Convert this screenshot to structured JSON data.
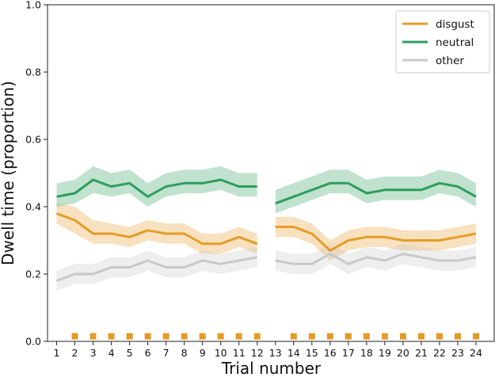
{
  "chart_data": {
    "type": "line",
    "xlabel": "Trial number",
    "ylabel": "Dwell time (proportion)",
    "ylim": [
      0.0,
      1.0
    ],
    "yticks": [
      "0.0",
      "0.2",
      "0.4",
      "0.6",
      "0.8",
      "1.0"
    ],
    "x": [
      1,
      2,
      3,
      4,
      5,
      6,
      7,
      8,
      9,
      10,
      11,
      12,
      13,
      14,
      15,
      16,
      17,
      18,
      19,
      20,
      21,
      22,
      23,
      24
    ],
    "segments": [
      [
        1,
        12
      ],
      [
        13,
        24
      ]
    ],
    "grid": false,
    "legend_position": "top-right",
    "series": [
      {
        "name": "disgust",
        "color": "#E69B27",
        "values": [
          0.38,
          0.36,
          0.32,
          0.32,
          0.31,
          0.33,
          0.32,
          0.32,
          0.29,
          0.29,
          0.31,
          0.29,
          0.34,
          0.34,
          0.32,
          0.27,
          0.3,
          0.31,
          0.31,
          0.3,
          0.3,
          0.3,
          0.31,
          0.32
        ],
        "lower": [
          0.35,
          0.32,
          0.29,
          0.29,
          0.28,
          0.3,
          0.29,
          0.29,
          0.26,
          0.26,
          0.28,
          0.26,
          0.31,
          0.31,
          0.29,
          0.24,
          0.27,
          0.28,
          0.28,
          0.27,
          0.27,
          0.27,
          0.28,
          0.29
        ],
        "upper": [
          0.41,
          0.4,
          0.36,
          0.35,
          0.34,
          0.36,
          0.35,
          0.35,
          0.32,
          0.32,
          0.34,
          0.32,
          0.37,
          0.37,
          0.35,
          0.3,
          0.33,
          0.34,
          0.34,
          0.33,
          0.33,
          0.33,
          0.34,
          0.35
        ]
      },
      {
        "name": "neutral",
        "color": "#2E9E5E",
        "values": [
          0.43,
          0.44,
          0.48,
          0.46,
          0.47,
          0.43,
          0.46,
          0.47,
          0.47,
          0.48,
          0.46,
          0.46,
          0.41,
          0.43,
          0.45,
          0.47,
          0.47,
          0.44,
          0.45,
          0.45,
          0.45,
          0.47,
          0.46,
          0.43
        ],
        "lower": [
          0.4,
          0.41,
          0.44,
          0.43,
          0.44,
          0.4,
          0.43,
          0.44,
          0.44,
          0.45,
          0.43,
          0.43,
          0.38,
          0.4,
          0.42,
          0.44,
          0.44,
          0.41,
          0.42,
          0.42,
          0.42,
          0.44,
          0.43,
          0.4
        ],
        "upper": [
          0.47,
          0.48,
          0.52,
          0.5,
          0.51,
          0.47,
          0.5,
          0.51,
          0.51,
          0.52,
          0.5,
          0.5,
          0.45,
          0.47,
          0.49,
          0.51,
          0.51,
          0.48,
          0.49,
          0.49,
          0.49,
          0.51,
          0.5,
          0.47
        ]
      },
      {
        "name": "other",
        "color": "#C8C8C8",
        "values": [
          0.18,
          0.2,
          0.2,
          0.22,
          0.22,
          0.24,
          0.22,
          0.22,
          0.24,
          0.23,
          0.24,
          0.25,
          0.24,
          0.23,
          0.23,
          0.26,
          0.23,
          0.25,
          0.24,
          0.26,
          0.25,
          0.24,
          0.24,
          0.25
        ],
        "lower": [
          0.15,
          0.17,
          0.17,
          0.19,
          0.19,
          0.21,
          0.19,
          0.19,
          0.21,
          0.2,
          0.21,
          0.22,
          0.21,
          0.2,
          0.2,
          0.23,
          0.2,
          0.22,
          0.21,
          0.23,
          0.22,
          0.21,
          0.21,
          0.22
        ],
        "upper": [
          0.21,
          0.23,
          0.23,
          0.25,
          0.25,
          0.27,
          0.25,
          0.25,
          0.27,
          0.26,
          0.27,
          0.28,
          0.27,
          0.26,
          0.26,
          0.29,
          0.26,
          0.28,
          0.27,
          0.29,
          0.28,
          0.27,
          0.27,
          0.28
        ]
      }
    ],
    "markers": {
      "color": "#E69B27",
      "y": 0.015,
      "x": [
        2,
        3,
        4,
        5,
        6,
        7,
        8,
        9,
        10,
        11,
        12,
        14,
        15,
        16,
        17,
        18,
        19,
        20,
        21,
        22,
        23,
        24
      ]
    }
  }
}
